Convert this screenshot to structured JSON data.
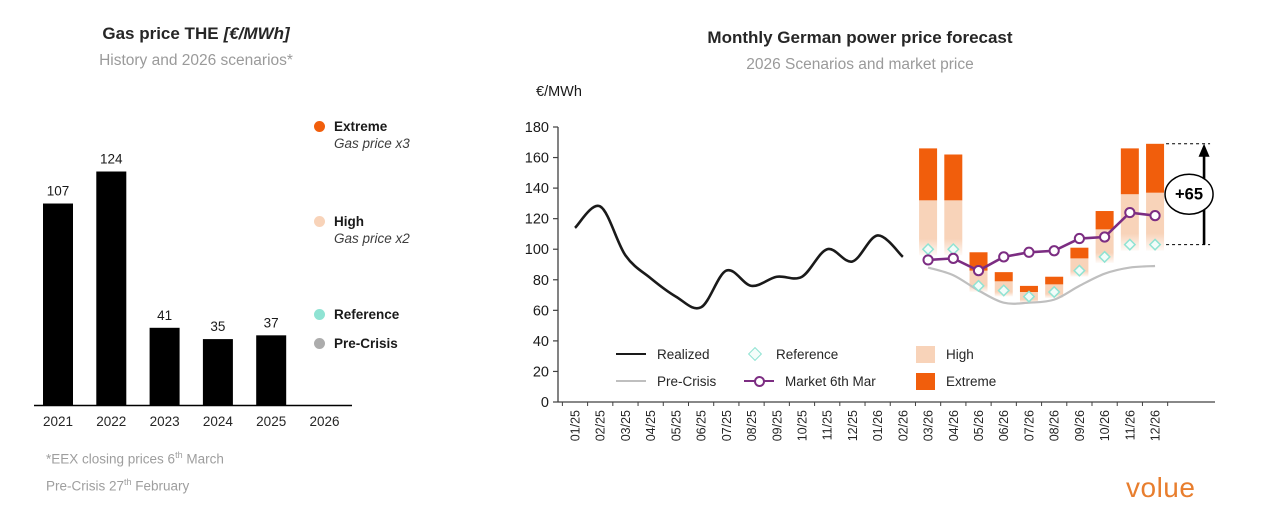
{
  "left_chart": {
    "title_main": "Gas price THE",
    "title_unit": "[€/MWh]",
    "subtitle": "History and 2026 scenarios*",
    "legend": [
      {
        "label": "Extreme",
        "sublabel": "Gas price x3",
        "color": "#F15E0C"
      },
      {
        "label": "High",
        "sublabel": "Gas price x2",
        "color": "#F8D3B9"
      },
      {
        "label": "Reference",
        "sublabel": "",
        "color": "#8FE3D3"
      },
      {
        "label": "Pre-Crisis",
        "sublabel": "",
        "color": "#ACACAC"
      }
    ]
  },
  "right_chart": {
    "title": "Monthly German power price forecast",
    "subtitle": "2026 Scenarios and market price",
    "axis_label": "€/MWh",
    "legend": {
      "realized": "Realized",
      "pre_crisis": "Pre-Crisis",
      "reference": "Reference",
      "market": "Market  6th Mar",
      "high": "High",
      "extreme": "Extreme"
    }
  },
  "footnote": {
    "line1": [
      "*EEX closing prices 6",
      "th",
      " March"
    ],
    "line2": [
      "Pre-Crisis 27",
      "th",
      " February"
    ]
  },
  "logo": "volue",
  "chart_data": [
    {
      "type": "bar",
      "title": "Gas price THE [€/MWh]",
      "subtitle": "History and 2026 scenarios*",
      "categories": [
        "2021",
        "2022",
        "2023",
        "2024",
        "2025",
        "2026"
      ],
      "values": [
        107,
        124,
        41,
        35,
        37,
        null
      ],
      "bar_color": "#000000",
      "value_labels": true,
      "grid": false,
      "legend": [
        "Extreme (Gas price x3)",
        "High (Gas price x2)",
        "Reference",
        "Pre-Crisis"
      ]
    },
    {
      "type": "line",
      "title": "Monthly German power price forecast",
      "subtitle": "2026 Scenarios and market price",
      "xlabel": "",
      "ylabel": "€/MWh",
      "ylim": [
        0,
        180
      ],
      "ytick_step": 20,
      "grid": false,
      "legend_position": "bottom",
      "categories": [
        "01/25",
        "02/25",
        "03/25",
        "04/25",
        "05/25",
        "06/25",
        "07/25",
        "08/25",
        "09/25",
        "10/25",
        "11/25",
        "12/25",
        "01/26",
        "02/26",
        "03/26",
        "04/26",
        "05/26",
        "06/26",
        "07/26",
        "08/26",
        "09/26",
        "10/26",
        "11/26",
        "12/26"
      ],
      "series": [
        {
          "name": "Realized",
          "kind": "line",
          "color": "#1A1A1A",
          "start_index": 0,
          "values": [
            114,
            128,
            96,
            81,
            69,
            62,
            86,
            76,
            82,
            82,
            100,
            92,
            109,
            95
          ]
        },
        {
          "name": "Pre-Crisis",
          "kind": "line",
          "color": "#BFBFBF",
          "start_index": 14,
          "values": [
            88,
            83,
            73,
            65,
            65,
            67,
            76,
            84,
            88,
            89
          ]
        },
        {
          "name": "High",
          "kind": "stacked-bar",
          "color": "#F8D3B9",
          "start_index": 14,
          "base": [
            100,
            100,
            76,
            73,
            69,
            72,
            86,
            95,
            103,
            103
          ],
          "top": [
            132,
            132,
            86,
            79,
            72,
            77,
            94,
            113,
            136,
            137
          ]
        },
        {
          "name": "Extreme",
          "kind": "stacked-bar",
          "color": "#F15E0C",
          "start_index": 14,
          "base": [
            132,
            132,
            86,
            79,
            72,
            77,
            94,
            113,
            136,
            137
          ],
          "top": [
            166,
            162,
            98,
            85,
            76,
            82,
            101,
            125,
            166,
            169
          ]
        },
        {
          "name": "Reference",
          "kind": "diamond",
          "color": "#8FE3D3",
          "start_index": 14,
          "values": [
            100,
            100,
            76,
            73,
            69,
            72,
            86,
            95,
            103,
            103
          ]
        },
        {
          "name": "Market 6th Mar",
          "kind": "line-marker",
          "color": "#7C2D82",
          "start_index": 14,
          "values": [
            93,
            94,
            86,
            95,
            98,
            99,
            107,
            108,
            124,
            122
          ]
        }
      ],
      "annotation": {
        "label": "+65",
        "at_category": "12/26",
        "from": 103,
        "to": 169
      }
    }
  ]
}
